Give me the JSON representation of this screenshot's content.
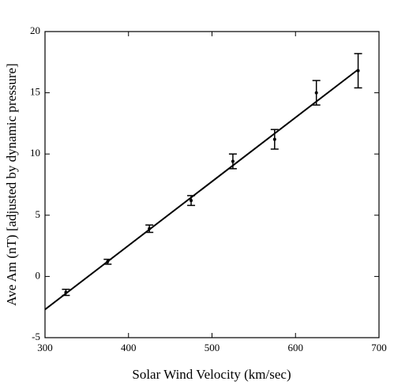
{
  "chart_data": {
    "type": "scatter",
    "x_label": "Solar Wind Velocity (km/sec)",
    "y_label": "Ave Am (nT) [adjusted by dynamic pressure]",
    "x": [
      325,
      375,
      425,
      475,
      525,
      575,
      625,
      675
    ],
    "values": [
      -1.3,
      1.2,
      3.9,
      6.2,
      9.4,
      11.2,
      15.0,
      16.8
    ],
    "errors": [
      0.25,
      0.2,
      0.3,
      0.4,
      0.6,
      0.8,
      1.0,
      1.4
    ],
    "fit": {
      "x": [
        300,
        675
      ],
      "y": [
        -2.7,
        16.9
      ]
    },
    "color": "#000000",
    "xlim": [
      300,
      700
    ],
    "xticks": [
      300,
      400,
      500,
      600,
      700
    ],
    "ylim": [
      -5,
      20
    ],
    "yticks": [
      -5,
      0,
      5,
      10,
      15,
      20
    ]
  }
}
